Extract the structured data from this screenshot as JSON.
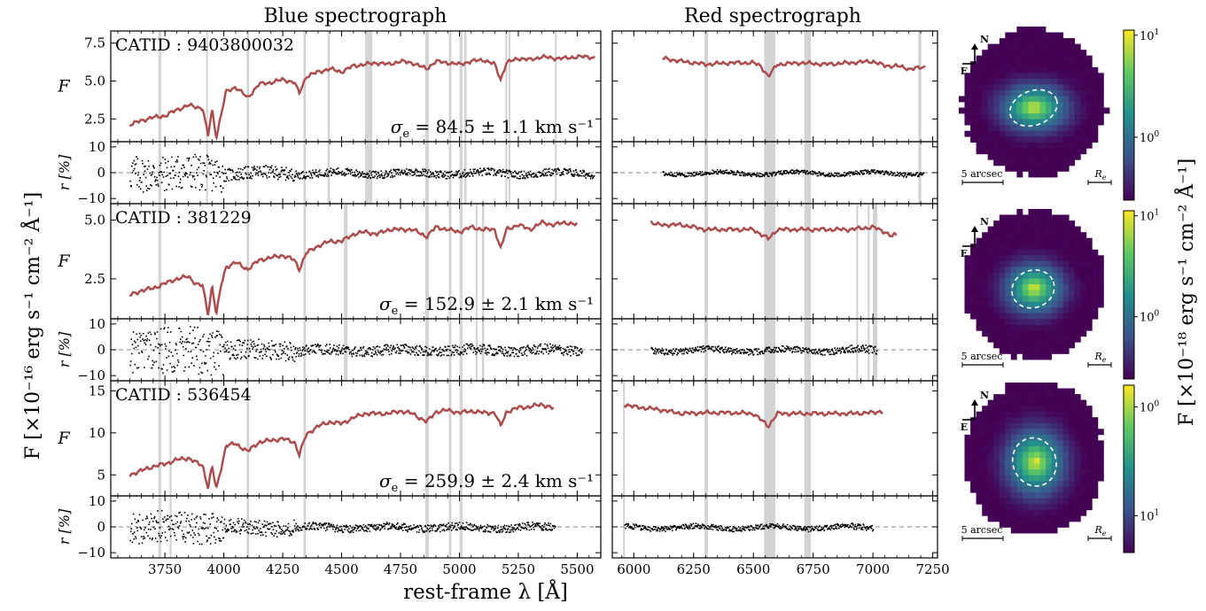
{
  "chart_data": {
    "type": "line",
    "headers": {
      "blue": "Blue spectrograph",
      "red": "Red spectrograph"
    },
    "xlabel": "rest-frame λ [Å]",
    "ylabel_common": "F [×10⁻¹⁶ erg s⁻¹ cm⁻² Å⁻¹]",
    "flux_axis_label": "F",
    "residual_axis_label": "r [%]",
    "map_colorbar_label": "F [×10⁻¹⁸ erg s⁻¹ cm⁻² Å⁻¹]",
    "colors": {
      "model": "#b04a4a",
      "data": "#a9a9a9",
      "mask": "#d3d3d3",
      "residual": "#000000"
    },
    "blue_xlim": [
      3520,
      5600
    ],
    "red_xlim": [
      5910,
      7270
    ],
    "blue_xticks": [
      "3750",
      "4000",
      "4250",
      "4500",
      "4750",
      "5000",
      "5250",
      "5500"
    ],
    "red_xticks": [
      "6000",
      "6250",
      "6500",
      "6750",
      "7000",
      "7250"
    ],
    "residual_ylim": [
      -12,
      12
    ],
    "residual_yticks": [
      "10",
      "0",
      "−10"
    ],
    "map": {
      "compass_north": "N",
      "compass_east": "E",
      "scale_label": "5 arcsec",
      "re_label": "R",
      "re_subscript": "e",
      "colormap": "viridis",
      "colorbar_scale": "log"
    },
    "galaxies": [
      {
        "catid_prefix": "CATID : ",
        "catid": "9403800032",
        "sigma_prefix": "σ",
        "sigma_sub": "e",
        "sigma_text": " = 84.5 ± 1.1 km s⁻¹",
        "flux_ylim": [
          1.0,
          8.3
        ],
        "flux_yticks": [
          "7.5",
          "5.0",
          "2.5"
        ],
        "flux_tick_values": [
          7.5,
          5.0,
          2.5
        ],
        "blue_anchors": [
          [
            3600,
            2.1
          ],
          [
            3650,
            2.4
          ],
          [
            3700,
            2.6
          ],
          [
            3750,
            2.7
          ],
          [
            3800,
            3.1
          ],
          [
            3850,
            3.4
          ],
          [
            3880,
            3.3
          ],
          [
            3910,
            3.2
          ],
          [
            3933,
            1.4
          ],
          [
            3950,
            3.1
          ],
          [
            3968,
            1.3
          ],
          [
            3990,
            2.9
          ],
          [
            4010,
            4.3
          ],
          [
            4050,
            4.6
          ],
          [
            4101,
            3.9
          ],
          [
            4150,
            4.8
          ],
          [
            4200,
            4.9
          ],
          [
            4250,
            5.1
          ],
          [
            4300,
            4.9
          ],
          [
            4320,
            4.2
          ],
          [
            4350,
            5.3
          ],
          [
            4400,
            5.6
          ],
          [
            4450,
            5.8
          ],
          [
            4500,
            5.6
          ],
          [
            4550,
            6.0
          ],
          [
            4600,
            6.1
          ],
          [
            4650,
            6.2
          ],
          [
            4700,
            6.1
          ],
          [
            4750,
            6.3
          ],
          [
            4800,
            6.2
          ],
          [
            4861,
            5.8
          ],
          [
            4900,
            6.3
          ],
          [
            4950,
            6.2
          ],
          [
            5000,
            6.1
          ],
          [
            5050,
            6.3
          ],
          [
            5100,
            6.4
          ],
          [
            5150,
            6.1
          ],
          [
            5175,
            5.1
          ],
          [
            5200,
            6.2
          ],
          [
            5250,
            6.5
          ],
          [
            5300,
            6.4
          ],
          [
            5350,
            6.6
          ],
          [
            5400,
            6.5
          ],
          [
            5450,
            6.5
          ],
          [
            5500,
            6.6
          ],
          [
            5550,
            6.6
          ],
          [
            5575,
            6.5
          ]
        ],
        "red_anchors": [
          [
            6120,
            6.5
          ],
          [
            6200,
            6.3
          ],
          [
            6300,
            6.1
          ],
          [
            6400,
            6.2
          ],
          [
            6500,
            6.2
          ],
          [
            6530,
            6.0
          ],
          [
            6563,
            5.3
          ],
          [
            6600,
            6.1
          ],
          [
            6700,
            6.2
          ],
          [
            6800,
            6.1
          ],
          [
            6900,
            6.2
          ],
          [
            7000,
            6.3
          ],
          [
            7050,
            6.0
          ],
          [
            7100,
            6.0
          ],
          [
            7150,
            5.8
          ],
          [
            7220,
            5.9
          ]
        ],
        "blue_masks": [
          [
            3722,
            3734
          ],
          [
            3925,
            3932
          ],
          [
            4097,
            4107
          ],
          [
            4338,
            4348
          ],
          [
            4440,
            4450
          ],
          [
            4600,
            4614
          ],
          [
            4615,
            4630
          ],
          [
            4855,
            4870
          ],
          [
            4955,
            4966
          ],
          [
            5001,
            5013
          ],
          [
            5020,
            5030
          ],
          [
            5195,
            5203
          ],
          [
            5209,
            5216
          ],
          [
            5405,
            5412
          ]
        ],
        "red_masks": [
          [
            6296,
            6310
          ],
          [
            6545,
            6592
          ],
          [
            6713,
            6740
          ],
          [
            7190,
            7202
          ]
        ],
        "blue_res_range": [
          3600,
          5570
        ],
        "red_res_range": [
          6120,
          7210
        ],
        "blue_res_amp": [
          7,
          2.5,
          1.5
        ],
        "red_res_amp": [
          0.8,
          0.8
        ],
        "blob": {
          "rx": 0.56,
          "ry": 0.58,
          "ex": 0.34,
          "ey": 0.24,
          "cx": 0.0,
          "cy": 0.08
        }
      },
      {
        "catid_prefix": "CATID : ",
        "catid": "381229",
        "sigma_prefix": "σ",
        "sigma_sub": "e",
        "sigma_text": " = 152.9 ± 2.1 km s⁻¹",
        "flux_ylim": [
          0.8,
          5.7
        ],
        "flux_yticks": [
          "5.0",
          "2.5"
        ],
        "flux_tick_values": [
          5.0,
          2.5
        ],
        "blue_anchors": [
          [
            3600,
            1.8
          ],
          [
            3650,
            2.0
          ],
          [
            3700,
            2.1
          ],
          [
            3750,
            2.3
          ],
          [
            3800,
            2.5
          ],
          [
            3850,
            2.6
          ],
          [
            3880,
            2.3
          ],
          [
            3910,
            2.2
          ],
          [
            3933,
            1.0
          ],
          [
            3950,
            2.2
          ],
          [
            3968,
            1.0
          ],
          [
            3990,
            2.3
          ],
          [
            4010,
            3.0
          ],
          [
            4050,
            3.2
          ],
          [
            4101,
            2.9
          ],
          [
            4150,
            3.3
          ],
          [
            4200,
            3.4
          ],
          [
            4250,
            3.5
          ],
          [
            4300,
            3.3
          ],
          [
            4320,
            2.9
          ],
          [
            4350,
            3.6
          ],
          [
            4400,
            3.9
          ],
          [
            4450,
            4.1
          ],
          [
            4500,
            4.1
          ],
          [
            4550,
            4.4
          ],
          [
            4600,
            4.5
          ],
          [
            4650,
            4.4
          ],
          [
            4700,
            4.6
          ],
          [
            4750,
            4.6
          ],
          [
            4800,
            4.6
          ],
          [
            4861,
            4.3
          ],
          [
            4900,
            4.7
          ],
          [
            4950,
            4.6
          ],
          [
            5000,
            4.5
          ],
          [
            5050,
            4.7
          ],
          [
            5100,
            4.6
          ],
          [
            5150,
            4.6
          ],
          [
            5175,
            3.8
          ],
          [
            5200,
            4.6
          ],
          [
            5250,
            4.8
          ],
          [
            5300,
            4.6
          ],
          [
            5350,
            4.9
          ],
          [
            5400,
            4.8
          ],
          [
            5450,
            4.9
          ],
          [
            5500,
            4.8
          ]
        ],
        "red_anchors": [
          [
            6070,
            4.9
          ],
          [
            6100,
            4.8
          ],
          [
            6200,
            4.8
          ],
          [
            6300,
            4.6
          ],
          [
            6400,
            4.6
          ],
          [
            6500,
            4.6
          ],
          [
            6563,
            4.2
          ],
          [
            6600,
            4.6
          ],
          [
            6700,
            4.6
          ],
          [
            6800,
            4.6
          ],
          [
            6900,
            4.6
          ],
          [
            7000,
            4.7
          ],
          [
            7050,
            4.5
          ],
          [
            7080,
            4.3
          ],
          [
            7100,
            4.4
          ]
        ],
        "blue_masks": [
          [
            3722,
            3734
          ],
          [
            4097,
            4107
          ],
          [
            4338,
            4348
          ],
          [
            4510,
            4525
          ],
          [
            4855,
            4870
          ],
          [
            4955,
            4966
          ],
          [
            5001,
            5013
          ],
          [
            5069,
            5077
          ],
          [
            5095,
            5105
          ]
        ],
        "red_masks": [
          [
            6296,
            6310
          ],
          [
            6545,
            6592
          ],
          [
            6713,
            6740
          ],
          [
            6930,
            6938
          ],
          [
            6978,
            6986
          ],
          [
            7000,
            7018
          ]
        ],
        "blue_res_range": [
          3600,
          5520
        ],
        "red_res_range": [
          6070,
          7015
        ],
        "blue_res_amp": [
          9,
          4,
          2
        ],
        "red_res_amp": [
          1.2,
          1.5
        ],
        "blob": {
          "rx": 0.55,
          "ry": 0.58,
          "ex": 0.3,
          "ey": 0.26,
          "cx": 0.0,
          "cy": 0.06
        }
      },
      {
        "catid_prefix": "CATID : ",
        "catid": "536454",
        "sigma_prefix": "σ",
        "sigma_sub": "e",
        "sigma_text": " = 259.9 ± 2.4 km s⁻¹",
        "flux_ylim": [
          2.5,
          16.2
        ],
        "flux_yticks": [
          "15",
          "10",
          "5"
        ],
        "flux_tick_values": [
          15,
          10,
          5
        ],
        "blue_anchors": [
          [
            3600,
            5.0
          ],
          [
            3650,
            5.5
          ],
          [
            3700,
            6.0
          ],
          [
            3750,
            6.3
          ],
          [
            3800,
            6.8
          ],
          [
            3850,
            7.0
          ],
          [
            3880,
            6.5
          ],
          [
            3910,
            6.1
          ],
          [
            3933,
            3.5
          ],
          [
            3950,
            6.0
          ],
          [
            3968,
            3.3
          ],
          [
            3990,
            6.0
          ],
          [
            4010,
            8.5
          ],
          [
            4050,
            8.7
          ],
          [
            4101,
            7.8
          ],
          [
            4150,
            8.9
          ],
          [
            4200,
            9.1
          ],
          [
            4250,
            9.3
          ],
          [
            4300,
            8.9
          ],
          [
            4320,
            7.4
          ],
          [
            4350,
            9.8
          ],
          [
            4400,
            10.8
          ],
          [
            4450,
            11.3
          ],
          [
            4500,
            11.1
          ],
          [
            4550,
            11.8
          ],
          [
            4600,
            12.3
          ],
          [
            4650,
            12.3
          ],
          [
            4700,
            12.3
          ],
          [
            4750,
            12.6
          ],
          [
            4800,
            12.3
          ],
          [
            4861,
            11.3
          ],
          [
            4900,
            12.5
          ],
          [
            4950,
            12.7
          ],
          [
            5000,
            12.4
          ],
          [
            5050,
            12.6
          ],
          [
            5100,
            12.4
          ],
          [
            5150,
            12.4
          ],
          [
            5175,
            10.8
          ],
          [
            5200,
            12.5
          ],
          [
            5250,
            13.0
          ],
          [
            5300,
            13.1
          ],
          [
            5350,
            13.4
          ],
          [
            5400,
            12.9
          ]
        ],
        "red_anchors": [
          [
            5960,
            13.4
          ],
          [
            6000,
            13.1
          ],
          [
            6100,
            12.8
          ],
          [
            6200,
            12.3
          ],
          [
            6300,
            12.4
          ],
          [
            6400,
            12.4
          ],
          [
            6500,
            12.3
          ],
          [
            6563,
            10.8
          ],
          [
            6600,
            12.3
          ],
          [
            6700,
            12.3
          ],
          [
            6800,
            12.3
          ],
          [
            6900,
            12.3
          ],
          [
            7000,
            12.4
          ],
          [
            7040,
            12.6
          ]
        ],
        "blue_masks": [
          [
            3722,
            3734
          ],
          [
            3770,
            3778
          ],
          [
            4097,
            4107
          ],
          [
            4338,
            4348
          ],
          [
            4855,
            4870
          ],
          [
            4955,
            4966
          ],
          [
            5001,
            5013
          ]
        ],
        "red_masks": [
          [
            5955,
            5962
          ],
          [
            6296,
            6310
          ],
          [
            6545,
            6592
          ],
          [
            6713,
            6740
          ]
        ],
        "blue_res_range": [
          3600,
          5405
        ],
        "red_res_range": [
          5960,
          7000
        ],
        "blue_res_amp": [
          6,
          3,
          1.5
        ],
        "red_res_amp": [
          1.0,
          1.2
        ],
        "blob": {
          "rx": 0.55,
          "ry": 0.6,
          "ex": 0.3,
          "ey": 0.34,
          "cx": 0.02,
          "cy": 0.06
        }
      }
    ]
  }
}
